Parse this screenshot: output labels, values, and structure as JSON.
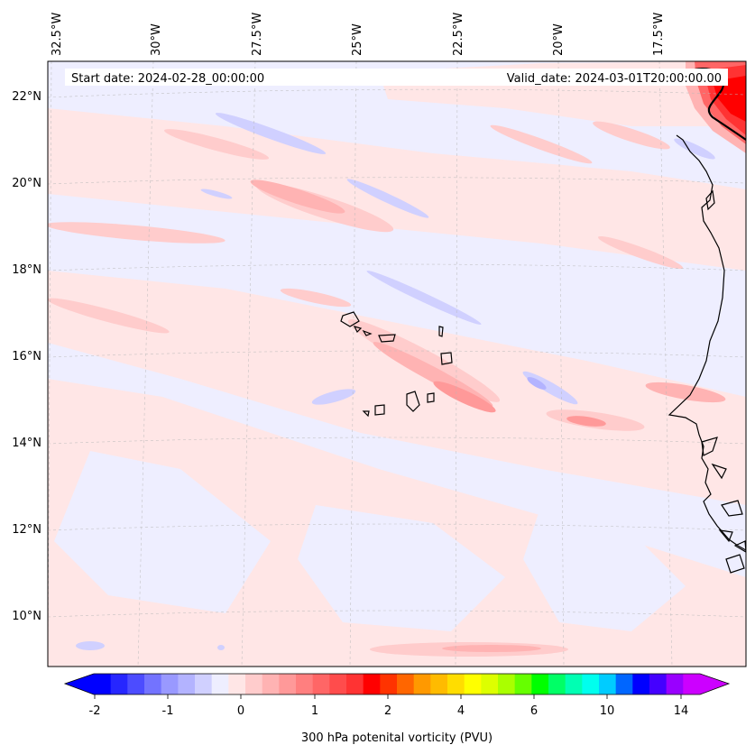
{
  "header": {
    "start_date": "Start date: 2024-02-28_00:00:00",
    "valid_date": "Valid_date: 2024-03-01T20:00:00.00"
  },
  "map": {
    "lon_labels": [
      "32.5°W",
      "30°W",
      "27.5°W",
      "25°W",
      "22.5°W",
      "20°W",
      "17.5°W"
    ],
    "lat_labels": [
      "22°N",
      "20°N",
      "18°N",
      "16°N",
      "14°N",
      "12°N",
      "10°N"
    ],
    "gridlines": true
  },
  "colorbar": {
    "tick_labels": [
      "-2",
      "-1",
      "0",
      "1",
      "2",
      "4",
      "6",
      "10",
      "14"
    ],
    "label": "300 hPa potenital vorticity (PVU)",
    "colors": [
      "#0000ff",
      "#2626ff",
      "#4c4cff",
      "#7373ff",
      "#9999ff",
      "#b3b3ff",
      "#d0d0ff",
      "#eeeeff",
      "#ffe6e6",
      "#ffcccc",
      "#ffb3b3",
      "#ff9999",
      "#ff7f7f",
      "#ff6666",
      "#ff4c4c",
      "#ff3333",
      "#ff0000",
      "#ff3300",
      "#ff6600",
      "#ff9900",
      "#ffbb00",
      "#ffdd00",
      "#ffff00",
      "#ddff00",
      "#aaff00",
      "#66ff00",
      "#00ff00",
      "#00ff66",
      "#00ffb3",
      "#00ffee",
      "#00ccff",
      "#0066ff",
      "#0000ff",
      "#4400ff",
      "#9900ff",
      "#cc00ff"
    ],
    "min_color": "#0000ff",
    "max_color": "#cc00ff"
  },
  "colors": {
    "background": "#eeeeff",
    "coast": "#000000"
  }
}
